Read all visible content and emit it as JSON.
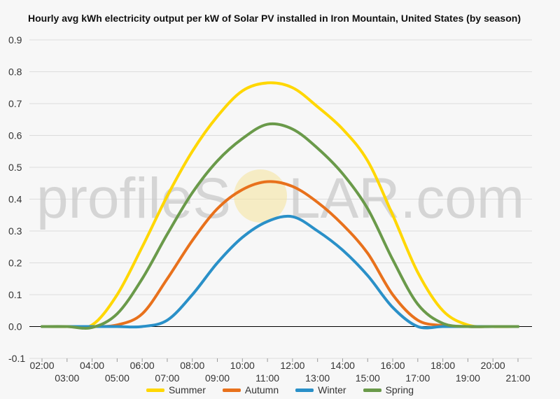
{
  "title": "Hourly avg kWh electricity output per kW of Solar PV installed in Iron Mountain, United States (by season)",
  "watermark": {
    "text_left": "profileS",
    "text_right": "LAR.com",
    "sun_color": "#f5e39a"
  },
  "colors": {
    "background": "#f7f7f7",
    "gridline": "#dcdcdc",
    "zero_line": "#000000",
    "Summer": "#ffd700",
    "Autumn": "#e8711c",
    "Winter": "#2a90c8",
    "Spring": "#6a9a4a"
  },
  "chart_data": {
    "type": "line",
    "title": "Hourly avg kWh electricity output per kW of Solar PV installed in Iron Mountain, United States (by season)",
    "xlabel": "",
    "ylabel": "",
    "x": [
      "02:00",
      "03:00",
      "04:00",
      "05:00",
      "06:00",
      "07:00",
      "08:00",
      "09:00",
      "10:00",
      "11:00",
      "12:00",
      "13:00",
      "14:00",
      "15:00",
      "16:00",
      "17:00",
      "18:00",
      "19:00",
      "20:00",
      "21:00"
    ],
    "ylim": [
      -0.1,
      0.9
    ],
    "yticks": [
      -0.1,
      0.0,
      0.1,
      0.2,
      0.3,
      0.4,
      0.5,
      0.6,
      0.7,
      0.8,
      0.9
    ],
    "grid": true,
    "legend": "bottom",
    "series": [
      {
        "name": "Summer",
        "values": [
          0,
          0,
          0.005,
          0.1,
          0.25,
          0.41,
          0.55,
          0.66,
          0.74,
          0.765,
          0.75,
          0.69,
          0.62,
          0.52,
          0.35,
          0.17,
          0.05,
          0.005,
          0,
          0
        ]
      },
      {
        "name": "Autumn",
        "values": [
          0,
          0,
          0,
          0.005,
          0.04,
          0.15,
          0.27,
          0.37,
          0.43,
          0.455,
          0.44,
          0.39,
          0.32,
          0.23,
          0.1,
          0.02,
          0.003,
          0,
          0,
          0
        ]
      },
      {
        "name": "Winter",
        "values": [
          0,
          0,
          0,
          0,
          0,
          0.02,
          0.1,
          0.2,
          0.28,
          0.33,
          0.345,
          0.3,
          0.24,
          0.16,
          0.06,
          0,
          0,
          0,
          0,
          0
        ]
      },
      {
        "name": "Spring",
        "values": [
          0,
          0,
          -0.003,
          0.04,
          0.15,
          0.29,
          0.42,
          0.52,
          0.59,
          0.635,
          0.62,
          0.56,
          0.48,
          0.37,
          0.21,
          0.07,
          0.01,
          0,
          0,
          0
        ]
      }
    ]
  }
}
